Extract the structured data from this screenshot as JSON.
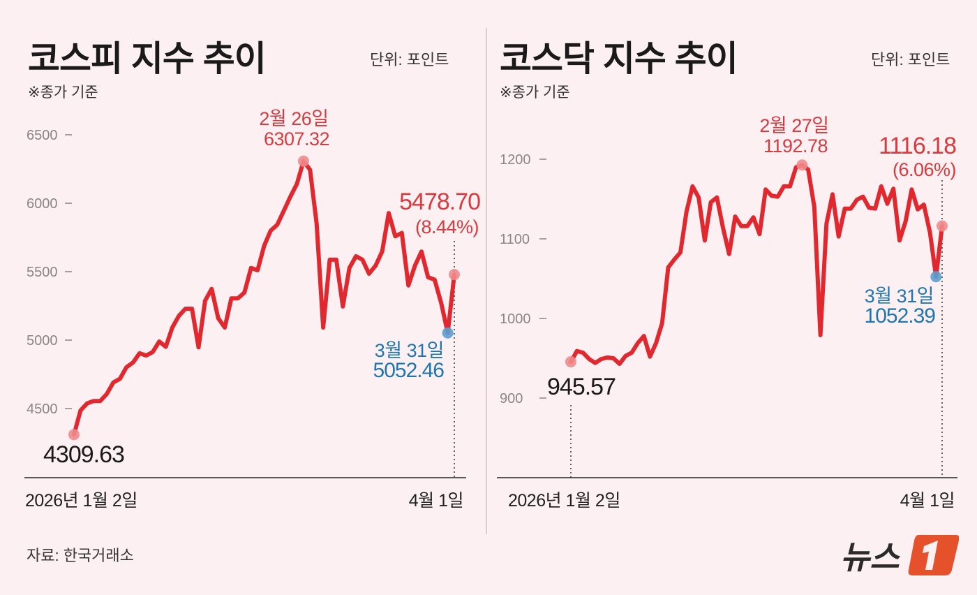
{
  "chart_data": [
    {
      "type": "line",
      "title": "코스피 지수 추이",
      "unit_label": "단위: 포인트",
      "note": "※종가 기준",
      "x_start_label": "2026년 1월 2일",
      "x_end_label": "4월 1일",
      "ylim": [
        4300,
        6600
      ],
      "yticks": [
        4500,
        5000,
        5500,
        6000,
        6500
      ],
      "ytick_labels": [
        "4500",
        "5000",
        "5500",
        "6000",
        "6500"
      ],
      "grid": false,
      "line_color": "#e0282e",
      "values": [
        4309.63,
        4486,
        4537,
        4555,
        4555,
        4606,
        4691,
        4717,
        4802,
        4836,
        4904,
        4887,
        4913,
        4990,
        4951,
        5092,
        5177,
        5229,
        5229,
        4947,
        5288,
        5374,
        5160,
        5092,
        5305,
        5305,
        5348,
        5527,
        5510,
        5689,
        5800,
        5843,
        5945,
        6048,
        6142,
        6307.32,
        6244,
        5852,
        5092,
        5587,
        5587,
        5246,
        5527,
        5613,
        5587,
        5485,
        5544,
        5647,
        5928,
        5758,
        5783,
        5399,
        5544,
        5647,
        5459,
        5442,
        5271,
        5052.46,
        5478.7
      ],
      "annotations": {
        "start": {
          "value": "4309.63"
        },
        "peak": {
          "date": "2월 26일",
          "value": "6307.32"
        },
        "low": {
          "date": "3월 31일",
          "value": "5052.46"
        },
        "last": {
          "value": "5478.70",
          "change": "(8.44%)"
        }
      }
    },
    {
      "type": "line",
      "title": "코스닥 지수 추이",
      "unit_label": "단위: 포인트",
      "note": "※종가 기준",
      "x_start_label": "2026년 1월 2일",
      "x_end_label": "4월 1일",
      "ylim": [
        860,
        1240
      ],
      "yticks": [
        900,
        1000,
        1100,
        1200
      ],
      "ytick_labels": [
        "900",
        "1000",
        "1100",
        "1200"
      ],
      "grid": false,
      "line_color": "#e0282e",
      "values": [
        945.57,
        959,
        957,
        949,
        944,
        949,
        951,
        950,
        943,
        953,
        957,
        969,
        978,
        952,
        969,
        994,
        1064,
        1074,
        1083,
        1134,
        1166,
        1152,
        1098,
        1146,
        1152,
        1114,
        1081,
        1128,
        1116,
        1116,
        1127,
        1106,
        1162,
        1154,
        1153,
        1166,
        1166,
        1190,
        1192.78,
        1187,
        1140,
        979,
        1119,
        1156,
        1103,
        1138,
        1138,
        1149,
        1153,
        1139,
        1138,
        1166,
        1144,
        1163,
        1098,
        1122,
        1162,
        1137,
        1143,
        1108,
        1052.39,
        1116.18
      ],
      "annotations": {
        "start": {
          "value": "945.57"
        },
        "peak": {
          "date": "2월 27일",
          "value": "1192.78"
        },
        "low": {
          "date": "3월 31일",
          "value": "1052.39"
        },
        "last": {
          "value": "1116.18",
          "change": "(6.06%)"
        }
      }
    }
  ],
  "footer": {
    "source": "자료: 한국거래소",
    "logo_text": "뉴스1"
  }
}
